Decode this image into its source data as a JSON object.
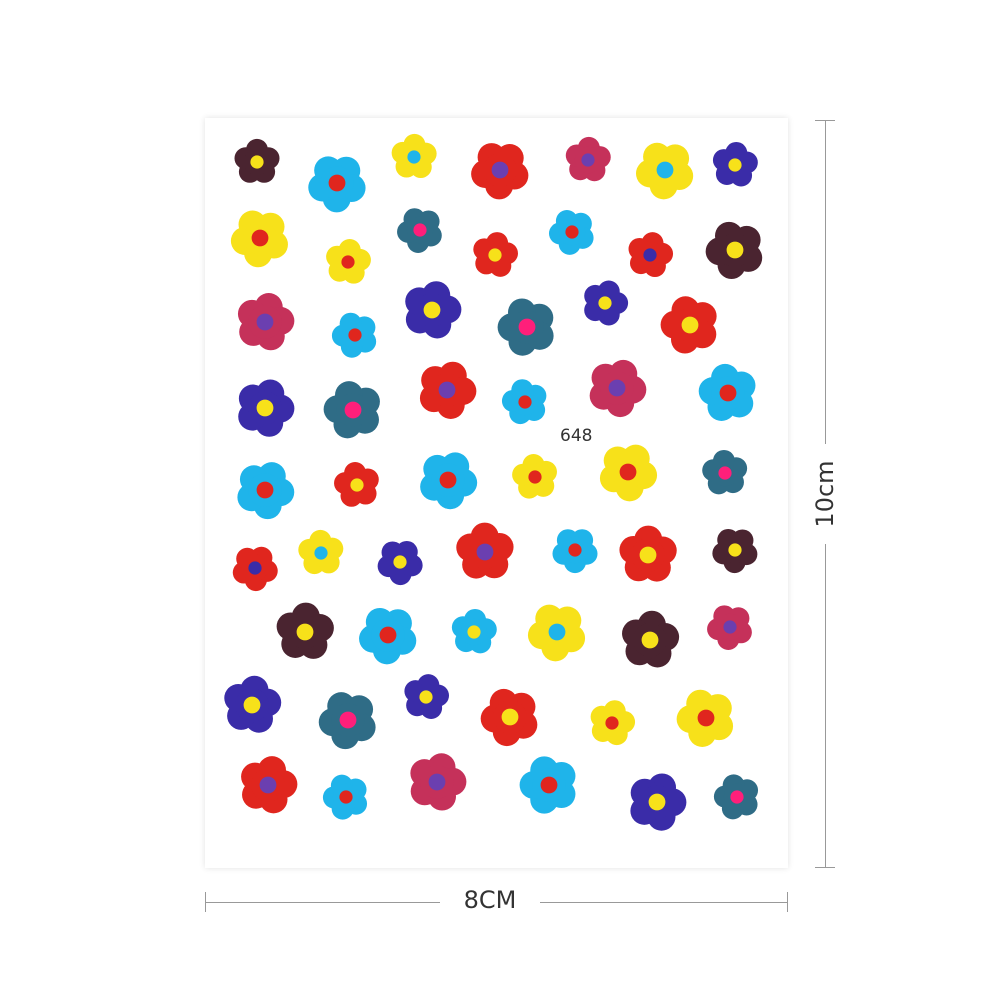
{
  "sheet": {
    "code": "648"
  },
  "dimensions": {
    "width_label": "8CM",
    "height_label": "10cm"
  },
  "palette": {
    "brown": "#4a2430",
    "cyan": "#1fb4ea",
    "yellow": "#f7e11a",
    "red": "#e0261e",
    "crimson": "#c5315a",
    "blue": "#3a2ca8",
    "teal": "#2f6c86",
    "magenta": "#ff1f7a",
    "purple": "#6b3fb0"
  }
}
